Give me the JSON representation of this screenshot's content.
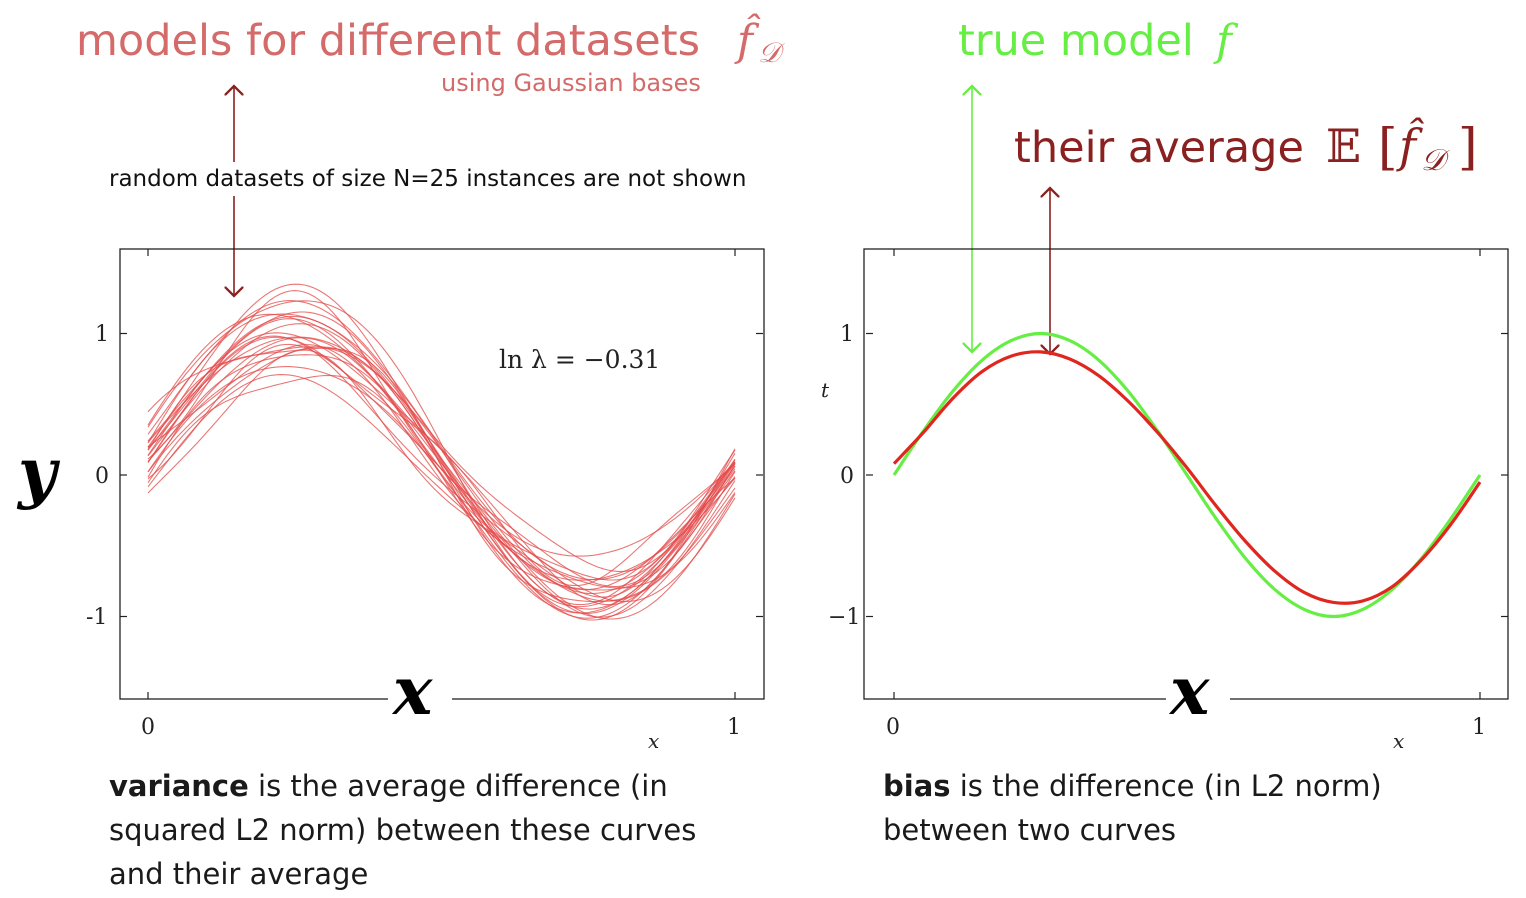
{
  "annotations": {
    "models_title": "models for different datasets",
    "models_symbol": "f̂",
    "models_subscript": "𝒟",
    "models_subtitle": "using Gaussian bases",
    "true_title": "true model",
    "true_symbol": "f",
    "avg_title": "their average",
    "avg_symbol_E": "𝔼",
    "avg_symbol_open": "[",
    "avg_symbol_f": "f̂",
    "avg_symbol_sub": "𝒟",
    "avg_symbol_close": "]",
    "datasets_note": "random datasets of size N=25 instances are not shown",
    "y_big": "y",
    "x_big_left": "x",
    "x_big_right": "x"
  },
  "captions": {
    "variance_bold": "variance",
    "variance_line1": " is the average difference (in",
    "variance_line2": "squared L2 norm) between these curves",
    "variance_line3": "and their average",
    "bias_bold": "bias",
    "bias_line1": " is the difference (in L2 norm)",
    "bias_line2": "between two curves"
  },
  "colors": {
    "models": "#d46a6a",
    "ensemble_lines": "#e34a4a",
    "true": "#66ee44",
    "average": "#8b2020",
    "average_line": "#e0261f",
    "axis": "#222222"
  },
  "chart_data": [
    {
      "type": "line",
      "title": "",
      "xlabel": "x",
      "ylabel": "",
      "xlim": [
        0,
        1
      ],
      "ylim": [
        -1.6,
        1.6
      ],
      "xticks": [
        "0",
        "1"
      ],
      "yticks": [
        "1",
        "0",
        "-1"
      ],
      "annotation": "ln λ = −0.31",
      "series_description": "25 fitted model curves, one per random dataset",
      "series_count": 25,
      "series": [
        {
          "x": [
            0,
            0.1,
            0.2,
            0.3,
            0.4,
            0.5,
            0.6,
            0.7,
            0.8,
            0.9,
            1.0
          ],
          "values": [
            0.15,
            0.45,
            0.75,
            0.85,
            0.72,
            0.15,
            -0.45,
            -0.82,
            -0.9,
            -0.6,
            -0.12
          ]
        },
        {
          "x": [
            0,
            0.1,
            0.2,
            0.3,
            0.4,
            0.5,
            0.6,
            0.7,
            0.8,
            0.9,
            1.0
          ],
          "values": [
            0.4,
            0.55,
            0.95,
            1.1,
            0.8,
            0.1,
            -0.5,
            -0.95,
            -1.1,
            -0.7,
            0.1
          ]
        },
        {
          "x": [
            0,
            0.1,
            0.2,
            0.3,
            0.4,
            0.5,
            0.6,
            0.7,
            0.8,
            0.9,
            1.0
          ],
          "values": [
            -0.3,
            0.3,
            0.65,
            0.75,
            0.6,
            0.2,
            -0.35,
            -0.65,
            -0.75,
            -0.55,
            -0.35
          ]
        }
      ]
    },
    {
      "type": "line",
      "title": "",
      "xlabel": "x",
      "ylabel": "t",
      "xlim": [
        0,
        1
      ],
      "ylim": [
        -1.6,
        1.6
      ],
      "xticks": [
        "0",
        "1"
      ],
      "yticks": [
        "1",
        "0",
        "−1"
      ],
      "x": [
        0,
        0.05,
        0.1,
        0.15,
        0.2,
        0.25,
        0.3,
        0.35,
        0.4,
        0.45,
        0.5,
        0.55,
        0.6,
        0.65,
        0.7,
        0.75,
        0.8,
        0.85,
        0.9,
        0.95,
        1.0
      ],
      "series": [
        {
          "name": "true model f",
          "values": [
            0.0,
            0.31,
            0.59,
            0.81,
            0.95,
            1.0,
            0.95,
            0.81,
            0.59,
            0.31,
            0.0,
            -0.31,
            -0.59,
            -0.81,
            -0.95,
            -1.0,
            -0.95,
            -0.81,
            -0.59,
            -0.31,
            0.0
          ]
        },
        {
          "name": "average E[f̂_D]",
          "values": [
            0.08,
            0.3,
            0.54,
            0.73,
            0.84,
            0.87,
            0.82,
            0.7,
            0.52,
            0.3,
            0.05,
            -0.22,
            -0.47,
            -0.68,
            -0.83,
            -0.9,
            -0.89,
            -0.79,
            -0.6,
            -0.35,
            -0.05
          ]
        }
      ]
    }
  ]
}
